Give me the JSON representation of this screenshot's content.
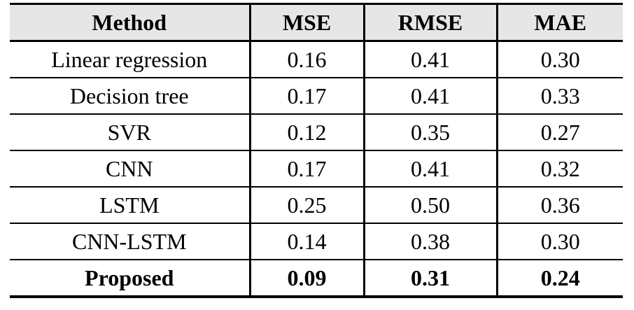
{
  "colors": {
    "header_bg": "#e6e6e6",
    "border": "#000000",
    "text": "#000000",
    "page_bg": "#ffffff"
  },
  "table": {
    "columns": [
      "Method",
      "MSE",
      "RMSE",
      "MAE"
    ],
    "rows": [
      {
        "method": "Linear regression",
        "mse": "0.16",
        "rmse": "0.41",
        "mae": "0.30"
      },
      {
        "method": "Decision tree",
        "mse": "0.17",
        "rmse": "0.41",
        "mae": "0.33"
      },
      {
        "method": "SVR",
        "mse": "0.12",
        "rmse": "0.35",
        "mae": "0.27"
      },
      {
        "method": "CNN",
        "mse": "0.17",
        "rmse": "0.41",
        "mae": "0.32"
      },
      {
        "method": "LSTM",
        "mse": "0.25",
        "rmse": "0.50",
        "mae": "0.36"
      },
      {
        "method": "CNN-LSTM",
        "mse": "0.14",
        "rmse": "0.38",
        "mae": "0.30"
      },
      {
        "method": "Proposed",
        "mse": "0.09",
        "rmse": "0.31",
        "mae": "0.24",
        "emphasis": "bold"
      }
    ]
  }
}
